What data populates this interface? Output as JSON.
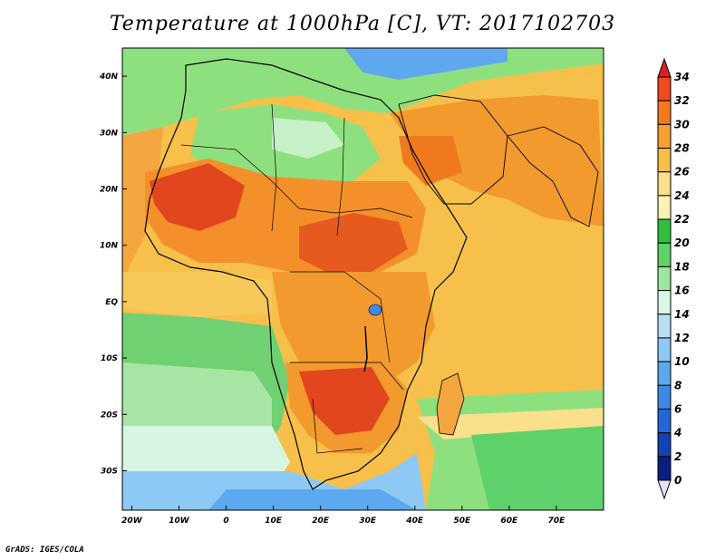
{
  "title": "Temperature at 1000hPa [C], VT: 2017102703",
  "credit": "GrADS: IGES/COLA",
  "map": {
    "lon_range": [
      -22,
      80
    ],
    "lat_range": [
      -37,
      45
    ],
    "lat_ticks": [
      "40N",
      "30N",
      "20N",
      "10N",
      "EQ",
      "10S",
      "20S",
      "30S"
    ],
    "lon_ticks": [
      "20W",
      "10W",
      "0",
      "10E",
      "20E",
      "30E",
      "40E",
      "50E",
      "60E",
      "70E"
    ]
  },
  "colorbar": {
    "labels": [
      "34",
      "32",
      "30",
      "28",
      "26",
      "24",
      "22",
      "20",
      "18",
      "16",
      "14",
      "12",
      "10",
      "8",
      "6",
      "4",
      "2",
      "0"
    ],
    "colors": [
      "#e01e1e",
      "#f04a1e",
      "#f57a1e",
      "#f7a032",
      "#f7c04a",
      "#fae08c",
      "#fff3b4",
      "#2fbf3c",
      "#5fd16a",
      "#9be79c",
      "#d9f7e6",
      "#b7dff4",
      "#8ec9f5",
      "#5ca9ef",
      "#3c8ae6",
      "#2466d6",
      "#1043b4",
      "#0a1f82"
    ]
  }
}
